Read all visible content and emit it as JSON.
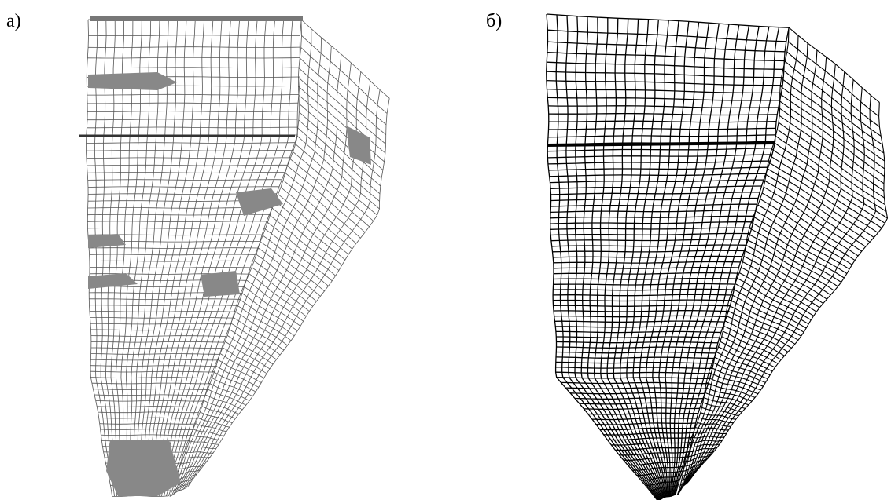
{
  "labels": {
    "a": "а)",
    "b": "б)"
  }
}
